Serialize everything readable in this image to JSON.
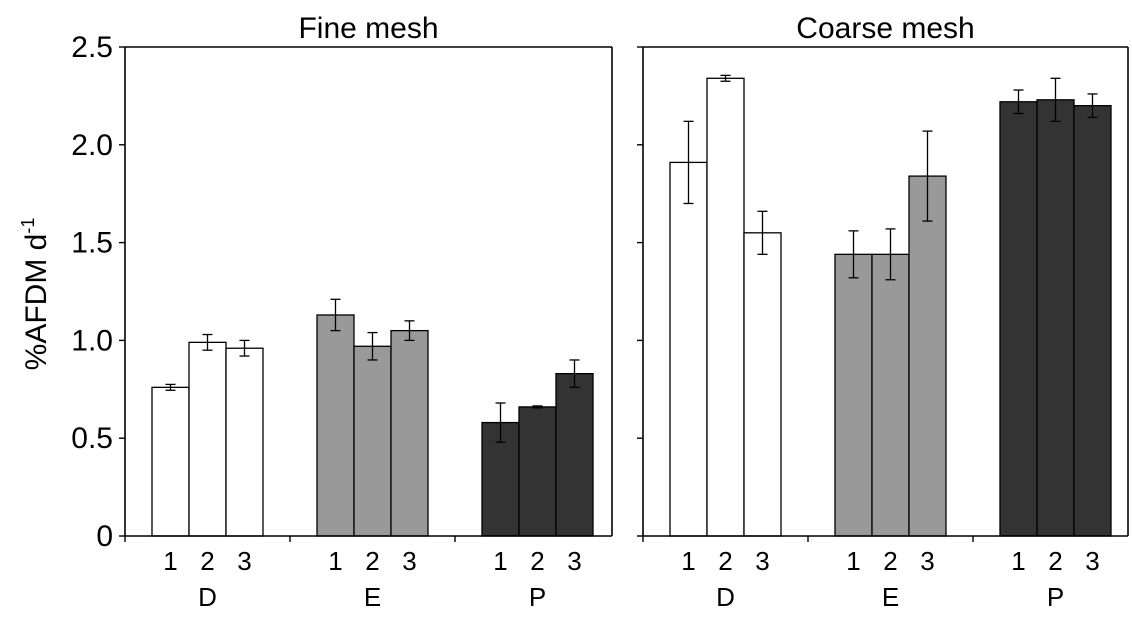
{
  "chart_data": [
    {
      "type": "bar",
      "title": "Fine mesh",
      "ylabel": "%AFDM d",
      "ylabel_superscript": "-1",
      "ylim": [
        0,
        2.5
      ],
      "yticks": [
        0,
        0.5,
        1.0,
        1.5,
        2.0,
        2.5
      ],
      "ytick_labels": [
        "0",
        "0.5",
        "1.0",
        "1.5",
        "2.0",
        "2.5"
      ],
      "categories": [
        "D",
        "E",
        "P"
      ],
      "subcategories": [
        "1",
        "2",
        "3"
      ],
      "colors": {
        "D": "#ffffff",
        "E": "#999999",
        "P": "#333333"
      },
      "groups": [
        {
          "name": "D",
          "values": [
            0.76,
            0.99,
            0.96
          ],
          "errors": [
            0.015,
            0.04,
            0.04
          ]
        },
        {
          "name": "E",
          "values": [
            1.13,
            0.97,
            1.05
          ],
          "errors": [
            0.08,
            0.07,
            0.05
          ]
        },
        {
          "name": "P",
          "values": [
            0.58,
            0.66,
            0.83
          ],
          "errors": [
            0.1,
            0.005,
            0.07
          ]
        }
      ]
    },
    {
      "type": "bar",
      "title": "Coarse mesh",
      "ylim": [
        0,
        2.5
      ],
      "yticks": [
        0,
        0.5,
        1.0,
        1.5,
        2.0,
        2.5
      ],
      "categories": [
        "D",
        "E",
        "P"
      ],
      "subcategories": [
        "1",
        "2",
        "3"
      ],
      "colors": {
        "D": "#ffffff",
        "E": "#999999",
        "P": "#333333"
      },
      "groups": [
        {
          "name": "D",
          "values": [
            1.91,
            2.34,
            1.55
          ],
          "errors": [
            0.21,
            0.015,
            0.11
          ]
        },
        {
          "name": "E",
          "values": [
            1.44,
            1.44,
            1.84
          ],
          "errors": [
            0.12,
            0.13,
            0.23
          ]
        },
        {
          "name": "P",
          "values": [
            2.22,
            2.23,
            2.2
          ],
          "errors": [
            0.06,
            0.11,
            0.06
          ]
        }
      ]
    }
  ]
}
